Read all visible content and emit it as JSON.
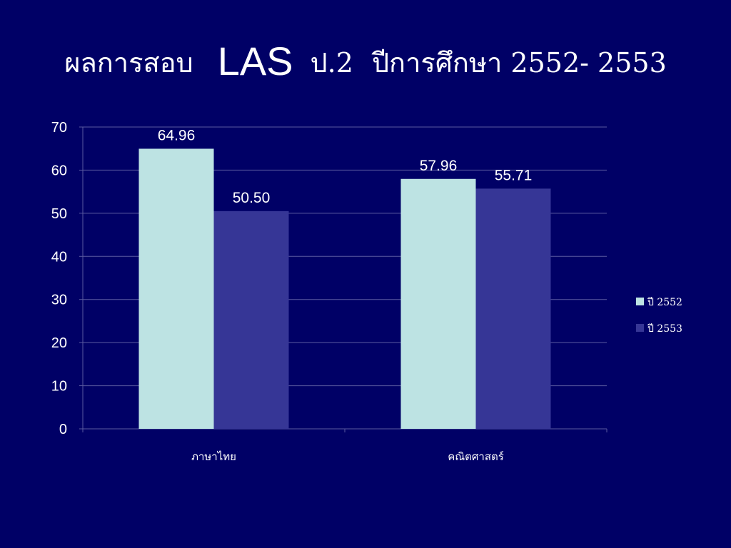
{
  "title": {
    "part1": "ผลการสอบ",
    "part2": "LAS",
    "part3": "ป.2",
    "part4": "ปีการศึกษา 2552- 2553"
  },
  "colors": {
    "background": "#000066",
    "series_2552": "#bde3e3",
    "series_2553": "#363696",
    "gridline": "#5a5aa0",
    "text": "#ffffff"
  },
  "chart_data": {
    "type": "bar",
    "title": "ผลการสอบ LAS ป.2 ปีการศึกษา 2552- 2553",
    "categories": [
      "ภาษาไทย",
      "คณิตศาสตร์"
    ],
    "series": [
      {
        "name": "ปี 2552",
        "values": [
          64.96,
          57.96
        ],
        "labels": [
          "64.96",
          "57.96"
        ],
        "color": "#bde3e3"
      },
      {
        "name": "ปี 2553",
        "values": [
          50.5,
          55.71
        ],
        "labels": [
          "50.50",
          "55.71"
        ],
        "color": "#363696"
      }
    ],
    "yticks": [
      0,
      10,
      20,
      30,
      40,
      50,
      60,
      70
    ],
    "ylim": [
      0,
      70
    ],
    "xlabel": "",
    "ylabel": "",
    "grid": true,
    "legend_position": "right"
  }
}
